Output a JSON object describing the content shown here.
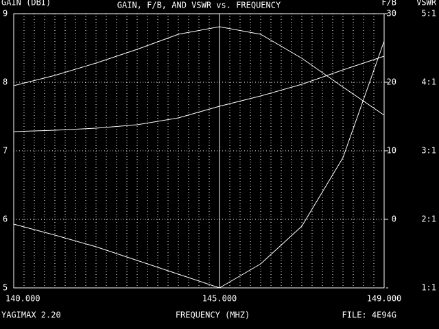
{
  "chart_data": {
    "type": "line",
    "title": "GAIN, F/B, AND VSWR vs. FREQUENCY",
    "y_label": "GAIN (DBI)",
    "y2_label": "F/B",
    "y3_label": "VSWR",
    "x_label": "FREQUENCY (MHZ)",
    "program": "YAGIMAX 2.20",
    "file": "FILE:  4E94G",
    "x": [
      140,
      141,
      142,
      143,
      144,
      145,
      146,
      147,
      148,
      149
    ],
    "xlim": [
      140,
      149
    ],
    "xticks": [
      {
        "value": 140,
        "label": "140.000"
      },
      {
        "value": 145,
        "label": "145.000"
      },
      {
        "value": 149,
        "label": "149.000"
      }
    ],
    "ylim": [
      5,
      9
    ],
    "yticks": [
      5,
      6,
      7,
      8,
      9
    ],
    "y2lim": [
      -10,
      30
    ],
    "y2ticks": [
      0,
      10,
      20,
      30
    ],
    "y3lim": [
      1,
      5
    ],
    "y3ticks": [
      {
        "value": 1,
        "label": "1:1"
      },
      {
        "value": 2,
        "label": "2:1"
      },
      {
        "value": 3,
        "label": "3:1"
      },
      {
        "value": 4,
        "label": "4:1"
      },
      {
        "value": 5,
        "label": "5:1"
      }
    ],
    "grid": true,
    "series": [
      {
        "color": "#ffffff",
        "axis": "y",
        "values": [
          7.28,
          7.3,
          7.33,
          7.38,
          7.48,
          7.65,
          7.8,
          7.97,
          8.18,
          8.38
        ]
      },
      {
        "color": "#ffffff",
        "axis": "y2",
        "values": [
          19.5,
          21,
          22.8,
          24.8,
          27,
          28.1,
          27,
          23.5,
          19.3,
          15.2
        ]
      },
      {
        "color": "#ffffff",
        "axis": "y3",
        "values": [
          1.93,
          1.77,
          1.6,
          1.4,
          1.2,
          1.0,
          1.35,
          1.9,
          2.9,
          4.6
        ]
      }
    ]
  }
}
